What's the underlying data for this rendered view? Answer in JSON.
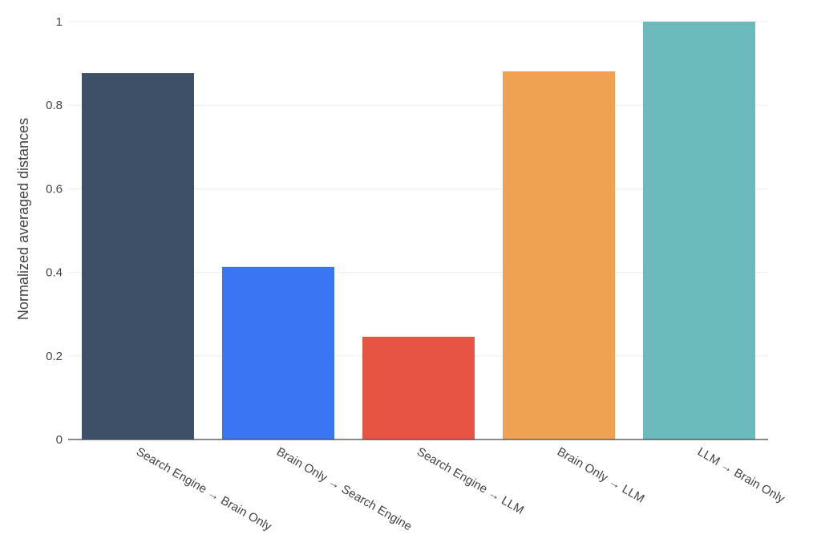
{
  "chart_data": {
    "type": "bar",
    "title": "",
    "xlabel": "",
    "ylabel": "Normalized averaged distances",
    "ylim": [
      0,
      1
    ],
    "yticks": [
      0,
      0.2,
      0.4,
      0.6,
      0.8,
      1
    ],
    "ytick_labels": [
      "0",
      "0.2",
      "0.4",
      "0.6",
      "0.8",
      "1"
    ],
    "grid": true,
    "categories": [
      "Search Engine → Brain Only",
      "Brain Only → Search Engine",
      "Search Engine → LLM",
      "Brain Only → LLM",
      "LLM → Brain Only"
    ],
    "values": [
      0.877,
      0.413,
      0.246,
      0.881,
      1.0
    ],
    "colors": [
      "#3d5068",
      "#3a75f3",
      "#e85443",
      "#efa352",
      "#6bbbbc"
    ]
  }
}
